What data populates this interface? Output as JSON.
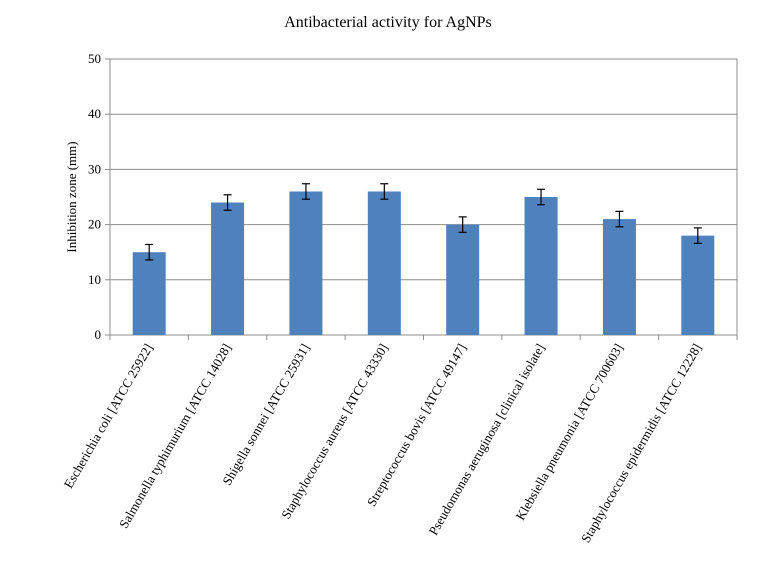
{
  "chart_data": {
    "type": "bar",
    "title": "Antibacterial activity for AgNPs",
    "xlabel": "",
    "ylabel": "Inhibition zone (mm)",
    "ylim": [
      0,
      50
    ],
    "yticks": [
      "0",
      "10",
      "20",
      "30",
      "40",
      "50"
    ],
    "grid": true,
    "legend": "none",
    "bar_color": "#4f81bd",
    "categories": [
      "Escherichia coli [ATCC 25922]",
      "Salmonella typhimurium [ATCC 14028]",
      "Shigella sonnei [ATCC 25931]",
      "Staphylococcus aureus [ATCC 43330]",
      "Streptococcus bovis [ATCC 49147]",
      "Pseudomonas aeruginosa [clinical isolate]",
      "Klebsiella pneumonia [ATCC 700603]",
      "Staphylococcus epidermidis [ATCC 12228]"
    ],
    "values": [
      15,
      24,
      26,
      26,
      20,
      25,
      21,
      18
    ],
    "errors": [
      1.4,
      1.4,
      1.4,
      1.4,
      1.4,
      1.4,
      1.4,
      1.4
    ]
  }
}
